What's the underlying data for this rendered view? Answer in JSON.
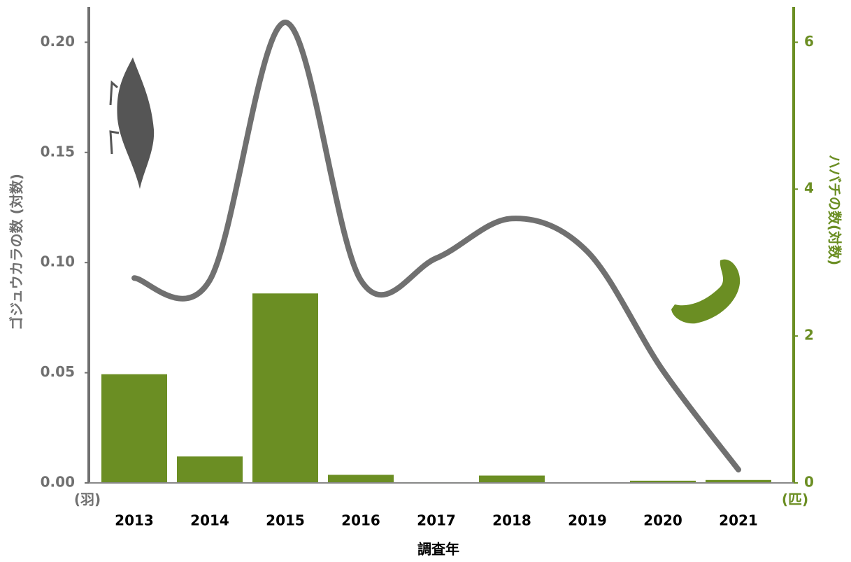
{
  "chart_data": {
    "type": "bar_line",
    "x_label": "調査年",
    "y_label": "ゴジュウカラの数 (対数)",
    "y2_label": "ハバチの数(対数)",
    "y_unit": "(羽)",
    "y2_unit": "(匹)",
    "categories": [
      "2013",
      "2014",
      "2015",
      "2016",
      "2017",
      "2018",
      "2019",
      "2020",
      "2021"
    ],
    "series": [
      {
        "name": "ハバチ",
        "type": "bar",
        "axis": "y2",
        "color": "#6b8e23",
        "values": [
          1.48,
          0.36,
          2.58,
          0.11,
          0.01,
          0.1,
          0,
          0.03,
          0.04
        ]
      },
      {
        "name": "ゴジュウカラ",
        "type": "line",
        "axis": "y",
        "color": "#707070",
        "values": [
          0.093,
          0.092,
          0.209,
          0.092,
          0.102,
          0.12,
          0.105,
          0.051,
          0.006
        ]
      }
    ],
    "ylim": [
      0,
      0.216
    ],
    "yticks": [
      {
        "value": 0,
        "label": "0.00"
      },
      {
        "value": 0.05,
        "label": "0.05"
      },
      {
        "value": 0.1,
        "label": "0.10"
      },
      {
        "value": 0.15,
        "label": "0.15"
      },
      {
        "value": 0.2,
        "label": "0.20"
      }
    ],
    "y2lim": [
      0,
      6.48
    ],
    "y2ticks": [
      0,
      2,
      4,
      6
    ],
    "y_color": "#707070",
    "y2_color": "#6b8e23"
  }
}
